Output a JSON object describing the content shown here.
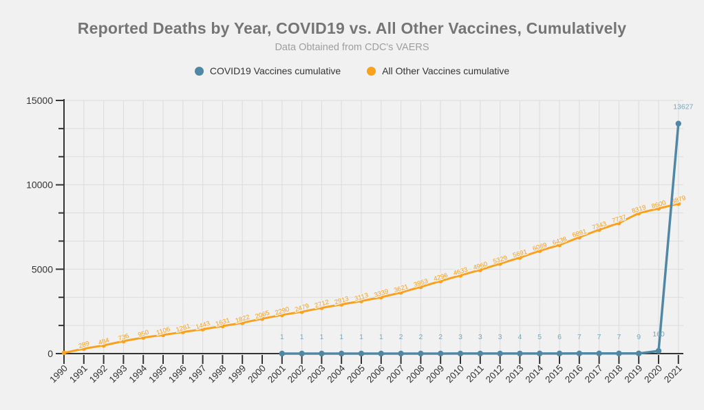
{
  "header": {
    "title": "Reported Deaths by Year, COVID19 vs. All Other Vaccines, Cumulatively",
    "subtitle": "Data Obtained from CDC's VAERS"
  },
  "legend": {
    "items": [
      {
        "label": "COVID19 Vaccines cumulative",
        "color": "#4f87a4"
      },
      {
        "label": "All Other Vaccines cumulative",
        "color": "#f9a01c"
      }
    ]
  },
  "chart_data": {
    "type": "line",
    "title": "Reported Deaths by Year, COVID19 vs. All Other Vaccines, Cumulatively",
    "subtitle": "Data Obtained from CDC's VAERS",
    "x": [
      1990,
      1991,
      1992,
      1993,
      1994,
      1995,
      1996,
      1997,
      1998,
      1999,
      2000,
      2001,
      2002,
      2003,
      2004,
      2005,
      2006,
      2007,
      2008,
      2009,
      2010,
      2011,
      2012,
      2013,
      2014,
      2015,
      2016,
      2017,
      2018,
      2019,
      2020,
      2021
    ],
    "series": [
      {
        "name": "COVID19 Vaccines cumulative",
        "color": "#4f87a4",
        "label_color": "#7aa6ba",
        "values": [
          null,
          null,
          null,
          null,
          null,
          null,
          null,
          null,
          null,
          null,
          null,
          1,
          1,
          1,
          1,
          1,
          1,
          2,
          2,
          2,
          3,
          3,
          3,
          4,
          5,
          6,
          7,
          7,
          7,
          9,
          160,
          13627
        ],
        "show_point_labels": true
      },
      {
        "name": "All Other Vaccines cumulative",
        "color": "#f9a01c",
        "label_color": "#f9a01c",
        "values": [
          45,
          289,
          484,
          736,
          950,
          1106,
          1281,
          1443,
          1631,
          1822,
          2065,
          2290,
          2479,
          2712,
          2913,
          3113,
          3339,
          3621,
          3953,
          4296,
          4633,
          4960,
          5329,
          5691,
          6089,
          6438,
          6891,
          7343,
          7737,
          8319,
          8600,
          8879
        ],
        "show_point_labels": true,
        "first_point_label_hidden": true
      }
    ],
    "ylim": [
      0,
      15000
    ],
    "yticks": [
      0,
      5000,
      10000,
      15000
    ],
    "y_minor_step": 1666.67,
    "grid": true,
    "legend_position": "top",
    "axis_color": "#333333",
    "grid_color": "#dcdcdc",
    "tick_label_color": "#333333",
    "background": "#f1f1f1"
  }
}
